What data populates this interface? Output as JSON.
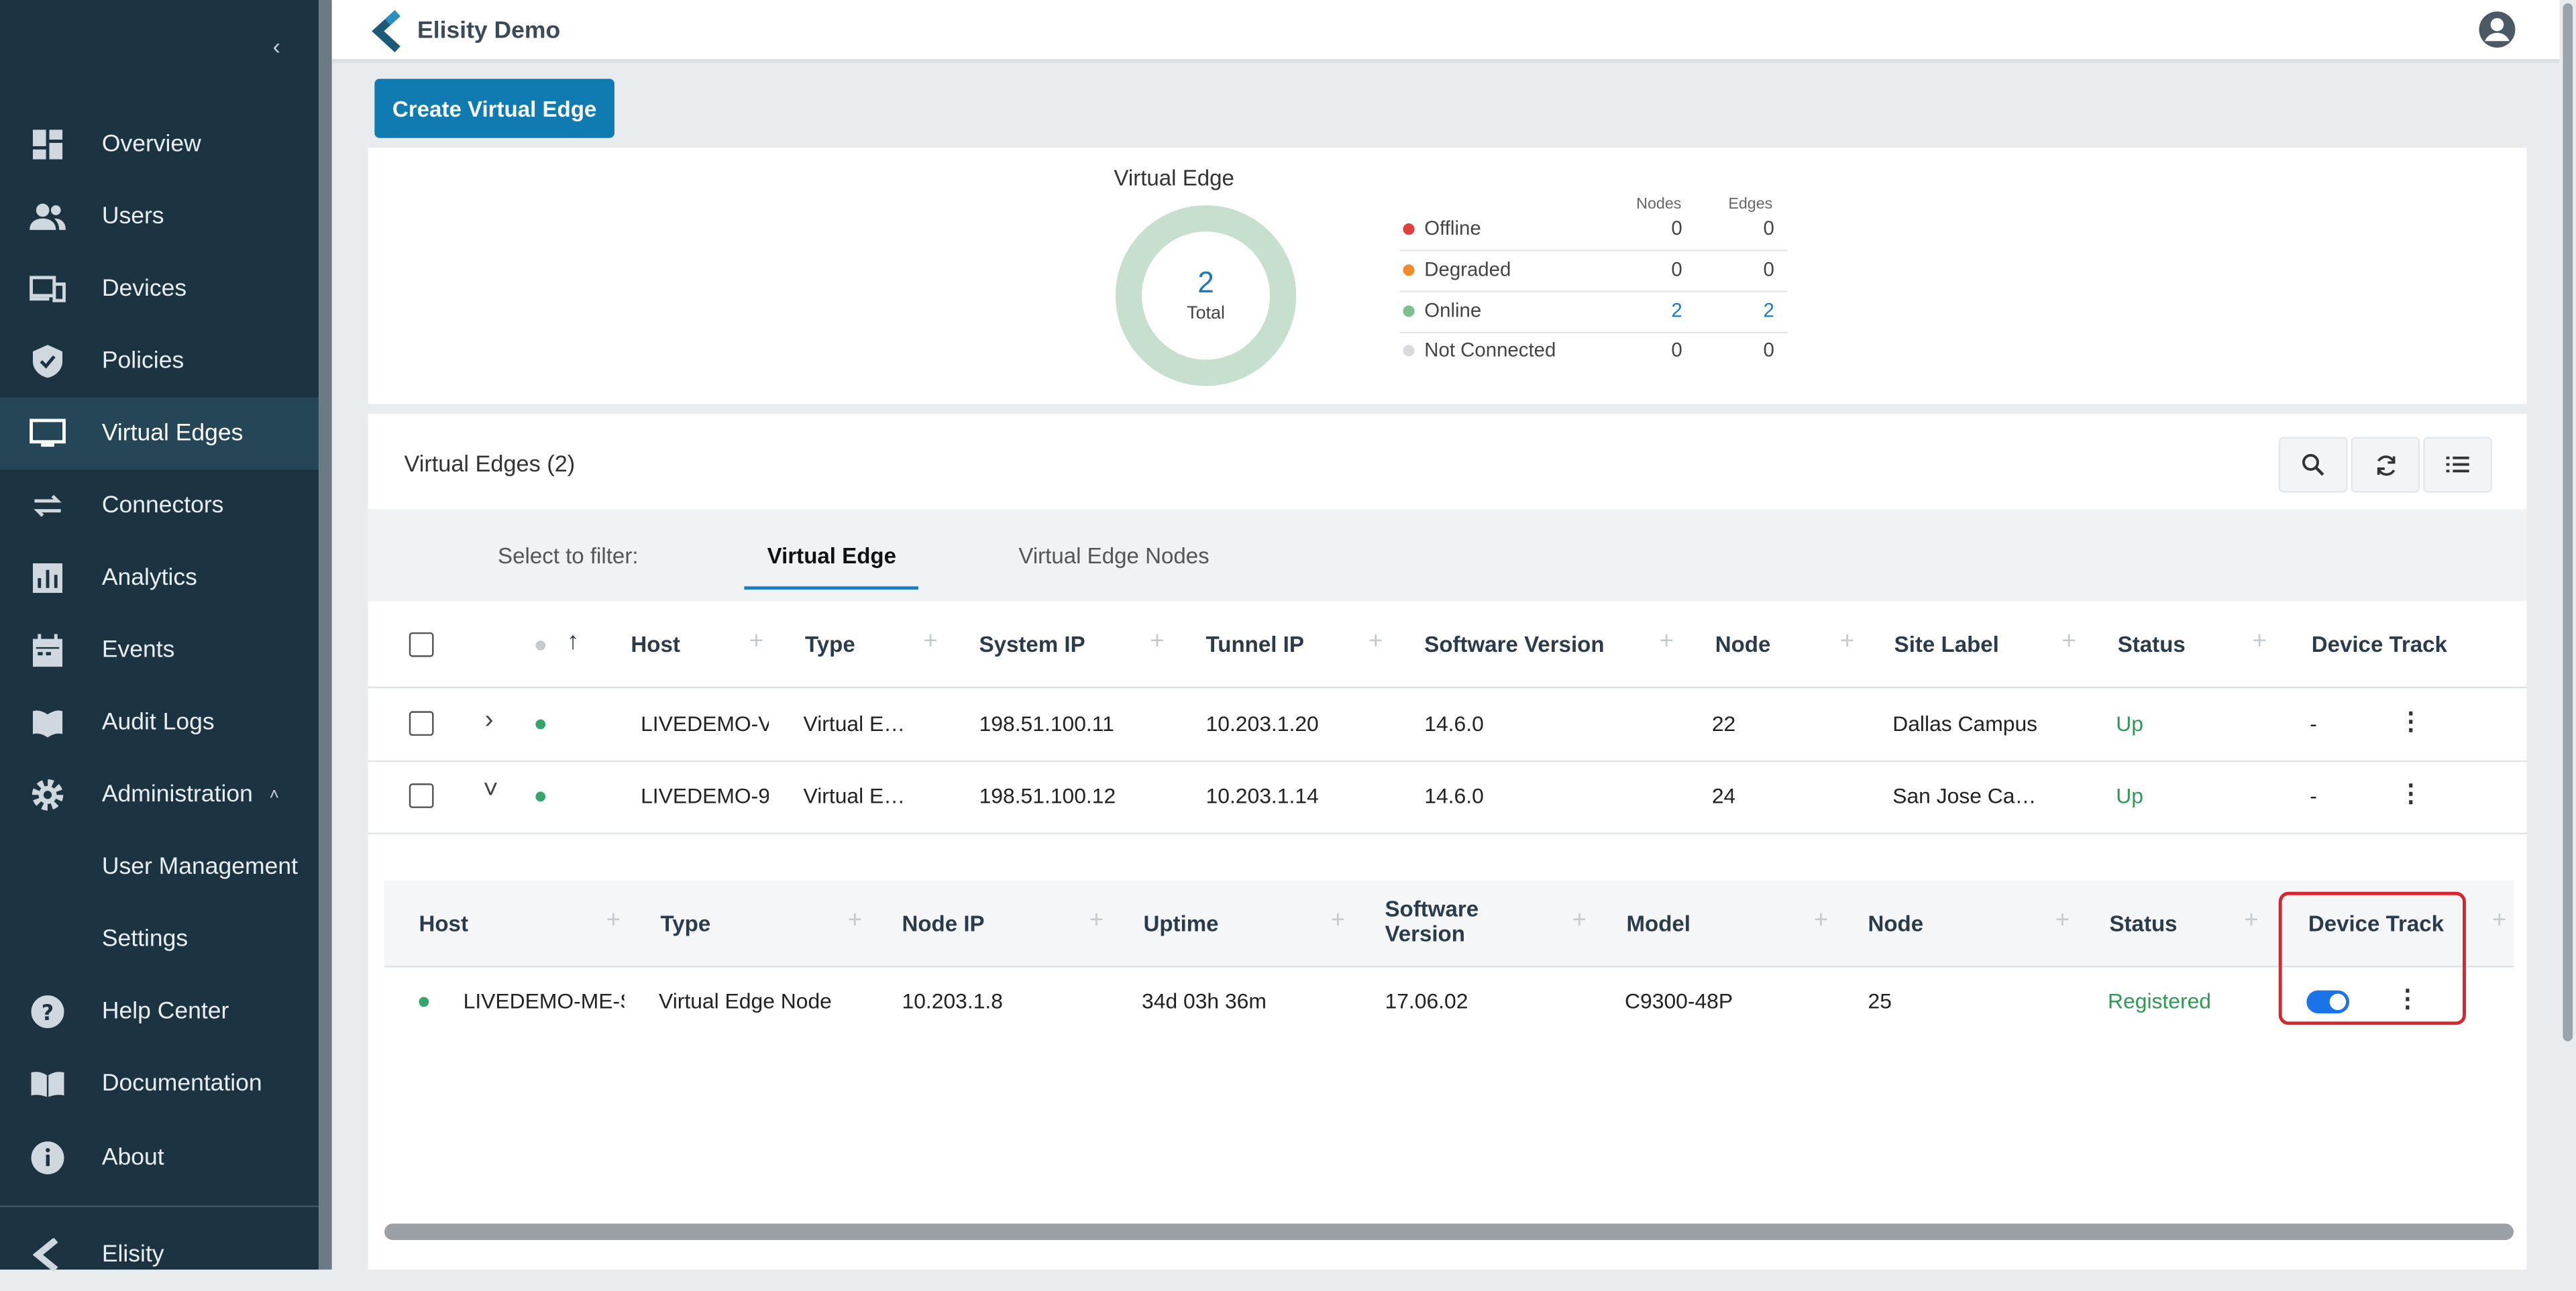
{
  "app": {
    "title": "Elisity Demo",
    "accent_color": "#0f7bb0",
    "sidebar_bg": "#1c3341",
    "collapse_glyph": "‹"
  },
  "sidebar": {
    "items": [
      {
        "label": "Overview",
        "icon": "dashboard-icon"
      },
      {
        "label": "Users",
        "icon": "users-icon"
      },
      {
        "label": "Devices",
        "icon": "devices-icon"
      },
      {
        "label": "Policies",
        "icon": "shield-icon"
      },
      {
        "label": "Virtual Edges",
        "icon": "monitor-icon"
      },
      {
        "label": "Connectors",
        "icon": "arrows-icon"
      },
      {
        "label": "Analytics",
        "icon": "analytics-icon"
      },
      {
        "label": "Events",
        "icon": "calendar-icon"
      },
      {
        "label": "Audit Logs",
        "icon": "book-icon"
      },
      {
        "label": "Administration",
        "icon": "gear-icon"
      },
      {
        "label": "User Management",
        "icon": ""
      },
      {
        "label": "Settings",
        "icon": ""
      },
      {
        "label": "Help Center",
        "icon": "help-icon"
      },
      {
        "label": "Documentation",
        "icon": "docs-icon"
      },
      {
        "label": "About",
        "icon": "info-icon"
      },
      {
        "label": "Elisity",
        "icon": "elisity-logo-icon"
      }
    ],
    "active": "Virtual Edges",
    "administration_expanded_glyph": "˄"
  },
  "toolbar": {
    "create_label": "Create Virtual Edge"
  },
  "summary": {
    "title": "Virtual Edge",
    "total_value": "2",
    "total_label": "Total",
    "col_nodes": "Nodes",
    "col_edges": "Edges",
    "rows": [
      {
        "label": "Offline",
        "nodes": "0",
        "edges": "0",
        "color": "#e0413c"
      },
      {
        "label": "Degraded",
        "nodes": "0",
        "edges": "0",
        "color": "#f08c2e"
      },
      {
        "label": "Online",
        "nodes": "2",
        "edges": "2",
        "color": "#7fbf8f"
      },
      {
        "label": "Not Connected",
        "nodes": "0",
        "edges": "0",
        "color": "#d9dcdf"
      }
    ]
  },
  "list": {
    "title": "Virtual Edges (2)",
    "filter_label": "Select to filter:",
    "tabs": [
      "Virtual Edge",
      "Virtual Edge Nodes"
    ],
    "active_tab": "Virtual Edge",
    "columns": [
      "Host",
      "Type",
      "System IP",
      "Tunnel IP",
      "Software Version",
      "Node",
      "Site Label",
      "Status",
      "Device Track"
    ],
    "sort_glyph": "↑",
    "rows": [
      {
        "expand": "›",
        "host": "LIVEDEMO-V",
        "type": "Virtual E…",
        "system_ip": "198.51.100.11",
        "tunnel_ip": "10.203.1.20",
        "software": "14.6.0",
        "node": "22",
        "site": "Dallas Campus",
        "status": "Up",
        "device_track": "-"
      },
      {
        "expand": "˅",
        "host": "LIVEDEMO-9",
        "type": "Virtual E…",
        "system_ip": "198.51.100.12",
        "tunnel_ip": "10.203.1.14",
        "software": "14.6.0",
        "node": "24",
        "site": "San Jose Ca…",
        "status": "Up",
        "device_track": "-"
      }
    ]
  },
  "subtable": {
    "columns": [
      "Host",
      "Type",
      "Node IP",
      "Uptime",
      "Software Version",
      "Model",
      "Node",
      "Status",
      "Device Track"
    ],
    "row": {
      "host": "LIVEDEMO-ME-S",
      "type": "Virtual Edge Node",
      "node_ip": "10.203.1.8",
      "uptime": "34d 03h 36m",
      "software": "17.06.02",
      "model": "C9300-48P",
      "node": "25",
      "status": "Registered",
      "device_track_on": true
    }
  },
  "glyphs": {
    "plus": "+",
    "kebab": "⋮"
  }
}
